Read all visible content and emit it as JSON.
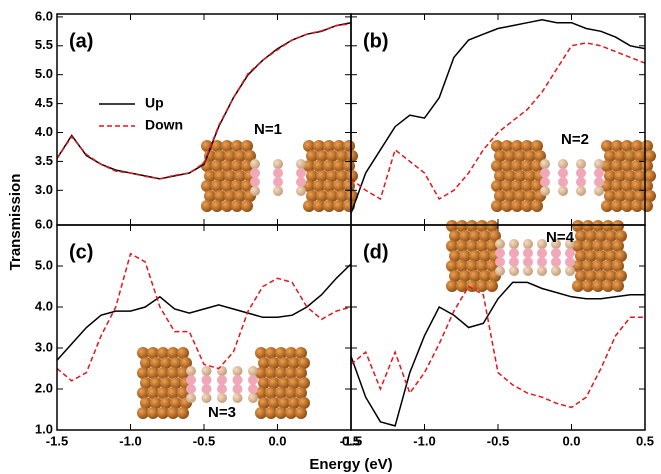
{
  "figure": {
    "xlabel": "Energy (eV)",
    "ylabel": "Transmission"
  },
  "chart_data": [
    {
      "type": "line",
      "panel_label": "(a)",
      "annotation": "N=1",
      "legend": "upper left",
      "x": [
        -1.5,
        -1.4,
        -1.3,
        -1.2,
        -1.1,
        -1.0,
        -0.9,
        -0.8,
        -0.7,
        -0.6,
        -0.5,
        -0.4,
        -0.3,
        -0.2,
        -0.1,
        0.0,
        0.1,
        0.2,
        0.3,
        0.4,
        0.5
      ],
      "xlim": [
        -1.5,
        0.5
      ],
      "ylim": [
        2.4,
        6.05
      ],
      "yticks": [
        {
          "value": 3,
          "label": "3.0"
        },
        3.5,
        {
          "value": 4,
          "label": "4.0"
        },
        4.5,
        {
          "value": 5,
          "label": "5.0"
        },
        5.5,
        {
          "value": 6,
          "label": "6.0"
        }
      ],
      "series": [
        {
          "name": "Up",
          "color": "#000000",
          "dash": false,
          "values": [
            3.55,
            3.95,
            3.6,
            3.45,
            3.35,
            3.3,
            3.25,
            3.2,
            3.25,
            3.3,
            3.45,
            4.1,
            4.6,
            5.0,
            5.25,
            5.45,
            5.6,
            5.7,
            5.75,
            5.85,
            5.9
          ]
        },
        {
          "name": "Down",
          "color": "#e8141c",
          "dash": true,
          "values": [
            3.55,
            3.93,
            3.62,
            3.45,
            3.33,
            3.3,
            3.24,
            3.2,
            3.26,
            3.3,
            3.47,
            4.12,
            4.6,
            5.02,
            5.25,
            5.43,
            5.6,
            5.7,
            5.76,
            5.85,
            5.88
          ]
        }
      ]
    },
    {
      "type": "line",
      "panel_label": "(b)",
      "annotation": "N=2",
      "x": [
        -1.5,
        -1.4,
        -1.3,
        -1.2,
        -1.1,
        -1.0,
        -0.9,
        -0.8,
        -0.7,
        -0.6,
        -0.5,
        -0.4,
        -0.3,
        -0.2,
        -0.1,
        0.0,
        0.1,
        0.2,
        0.3,
        0.4,
        0.5
      ],
      "xlim": [
        -1.5,
        0.5
      ],
      "ylim": [
        2.4,
        6.05
      ],
      "series": [
        {
          "color": "#000000",
          "dash": false,
          "values": [
            2.6,
            3.3,
            3.7,
            4.1,
            4.3,
            4.25,
            4.6,
            5.3,
            5.6,
            5.7,
            5.8,
            5.85,
            5.9,
            5.95,
            5.9,
            5.9,
            5.8,
            5.75,
            5.65,
            5.5,
            5.45
          ]
        },
        {
          "color": "#e8141c",
          "dash": true,
          "values": [
            3.2,
            3.0,
            2.85,
            3.7,
            3.5,
            3.3,
            2.85,
            3.0,
            3.3,
            3.7,
            4.0,
            4.2,
            4.4,
            4.7,
            5.1,
            5.5,
            5.55,
            5.5,
            5.4,
            5.3,
            5.2
          ]
        }
      ]
    },
    {
      "type": "line",
      "panel_label": "(c)",
      "annotation": "N=3",
      "x": [
        -1.5,
        -1.4,
        -1.3,
        -1.2,
        -1.1,
        -1.0,
        -0.9,
        -0.8,
        -0.7,
        -0.6,
        -0.5,
        -0.4,
        -0.3,
        -0.2,
        -0.1,
        0.0,
        0.1,
        0.2,
        0.3,
        0.4,
        0.5
      ],
      "xlim": [
        -1.5,
        0.5
      ],
      "ylim": [
        1,
        6
      ],
      "xticks": [
        -1.5,
        {
          "value": -1,
          "label": "-1.0"
        },
        -0.5,
        {
          "value": 0,
          "label": "0.0"
        },
        0.5
      ],
      "yticks": [
        {
          "value": 1,
          "label": "1.0"
        },
        {
          "value": 2,
          "label": "2.0"
        },
        {
          "value": 3,
          "label": "3.0"
        },
        {
          "value": 4,
          "label": "4.0"
        },
        {
          "value": 5,
          "label": "5.0"
        },
        {
          "value": 6,
          "label": "6.0"
        }
      ],
      "series": [
        {
          "color": "#000000",
          "dash": false,
          "values": [
            2.7,
            3.1,
            3.5,
            3.8,
            3.9,
            3.9,
            4.0,
            4.25,
            3.95,
            3.85,
            3.95,
            4.05,
            3.95,
            3.85,
            3.75,
            3.75,
            3.8,
            4.0,
            4.3,
            4.7,
            5.05
          ]
        },
        {
          "color": "#e8141c",
          "dash": true,
          "values": [
            2.5,
            2.2,
            2.4,
            3.3,
            4.0,
            5.3,
            5.1,
            4.0,
            3.4,
            3.4,
            2.6,
            2.5,
            2.9,
            3.9,
            4.5,
            4.7,
            4.6,
            4.0,
            3.7,
            3.9,
            4.0
          ]
        }
      ]
    },
    {
      "type": "line",
      "panel_label": "(d)",
      "annotation": "N=4",
      "x": [
        -1.5,
        -1.4,
        -1.3,
        -1.2,
        -1.1,
        -1.0,
        -0.9,
        -0.8,
        -0.7,
        -0.6,
        -0.5,
        -0.4,
        -0.3,
        -0.2,
        -0.1,
        0.0,
        0.1,
        0.2,
        0.3,
        0.4,
        0.5
      ],
      "xlim": [
        -1.5,
        0.5
      ],
      "ylim": [
        1,
        6
      ],
      "xticks": [
        -1.5,
        {
          "value": -1,
          "label": "-1.0"
        },
        -0.5,
        {
          "value": 0,
          "label": "0.0"
        },
        0.5
      ],
      "series": [
        {
          "color": "#000000",
          "dash": false,
          "values": [
            2.8,
            1.8,
            1.2,
            1.1,
            2.4,
            3.3,
            4.0,
            3.8,
            3.5,
            3.6,
            4.2,
            4.6,
            4.6,
            4.45,
            4.35,
            4.25,
            4.2,
            4.2,
            4.25,
            4.3,
            4.3
          ]
        },
        {
          "color": "#e8141c",
          "dash": true,
          "values": [
            2.6,
            2.9,
            2.0,
            2.9,
            1.9,
            2.4,
            3.1,
            3.9,
            4.5,
            4.3,
            2.4,
            2.1,
            1.9,
            1.8,
            1.65,
            1.55,
            1.8,
            2.5,
            3.3,
            3.75,
            3.75
          ]
        }
      ]
    }
  ]
}
